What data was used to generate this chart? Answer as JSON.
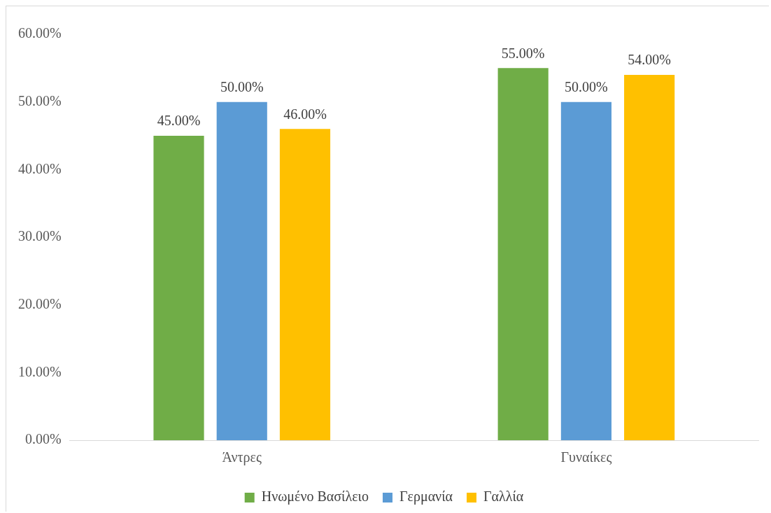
{
  "chart_data": {
    "type": "bar",
    "categories": [
      "Άντρες",
      "Γυναίκες"
    ],
    "series": [
      {
        "name": "Ηνωμένο Βασίλειο",
        "color": "#70ad47",
        "values": [
          45,
          55
        ],
        "value_labels": [
          "45.00%",
          "55.00%"
        ]
      },
      {
        "name": "Γερμανία",
        "color": "#5b9bd5",
        "values": [
          50,
          50
        ],
        "value_labels": [
          "50.00%",
          "50.00%"
        ]
      },
      {
        "name": "Γαλλία",
        "color": "#ffc000",
        "values": [
          46,
          54
        ],
        "value_labels": [
          "46.00%",
          "54.00%"
        ]
      }
    ],
    "ylim": [
      0,
      60
    ],
    "yticks": [
      {
        "value": 0,
        "label": "0.00%"
      },
      {
        "value": 10,
        "label": "10.00%"
      },
      {
        "value": 20,
        "label": "20.00%"
      },
      {
        "value": 30,
        "label": "30.00%"
      },
      {
        "value": 40,
        "label": "40.00%"
      },
      {
        "value": 50,
        "label": "50.00%"
      },
      {
        "value": 60,
        "label": "60.00%"
      }
    ],
    "grid": false,
    "legend": "bottom"
  }
}
